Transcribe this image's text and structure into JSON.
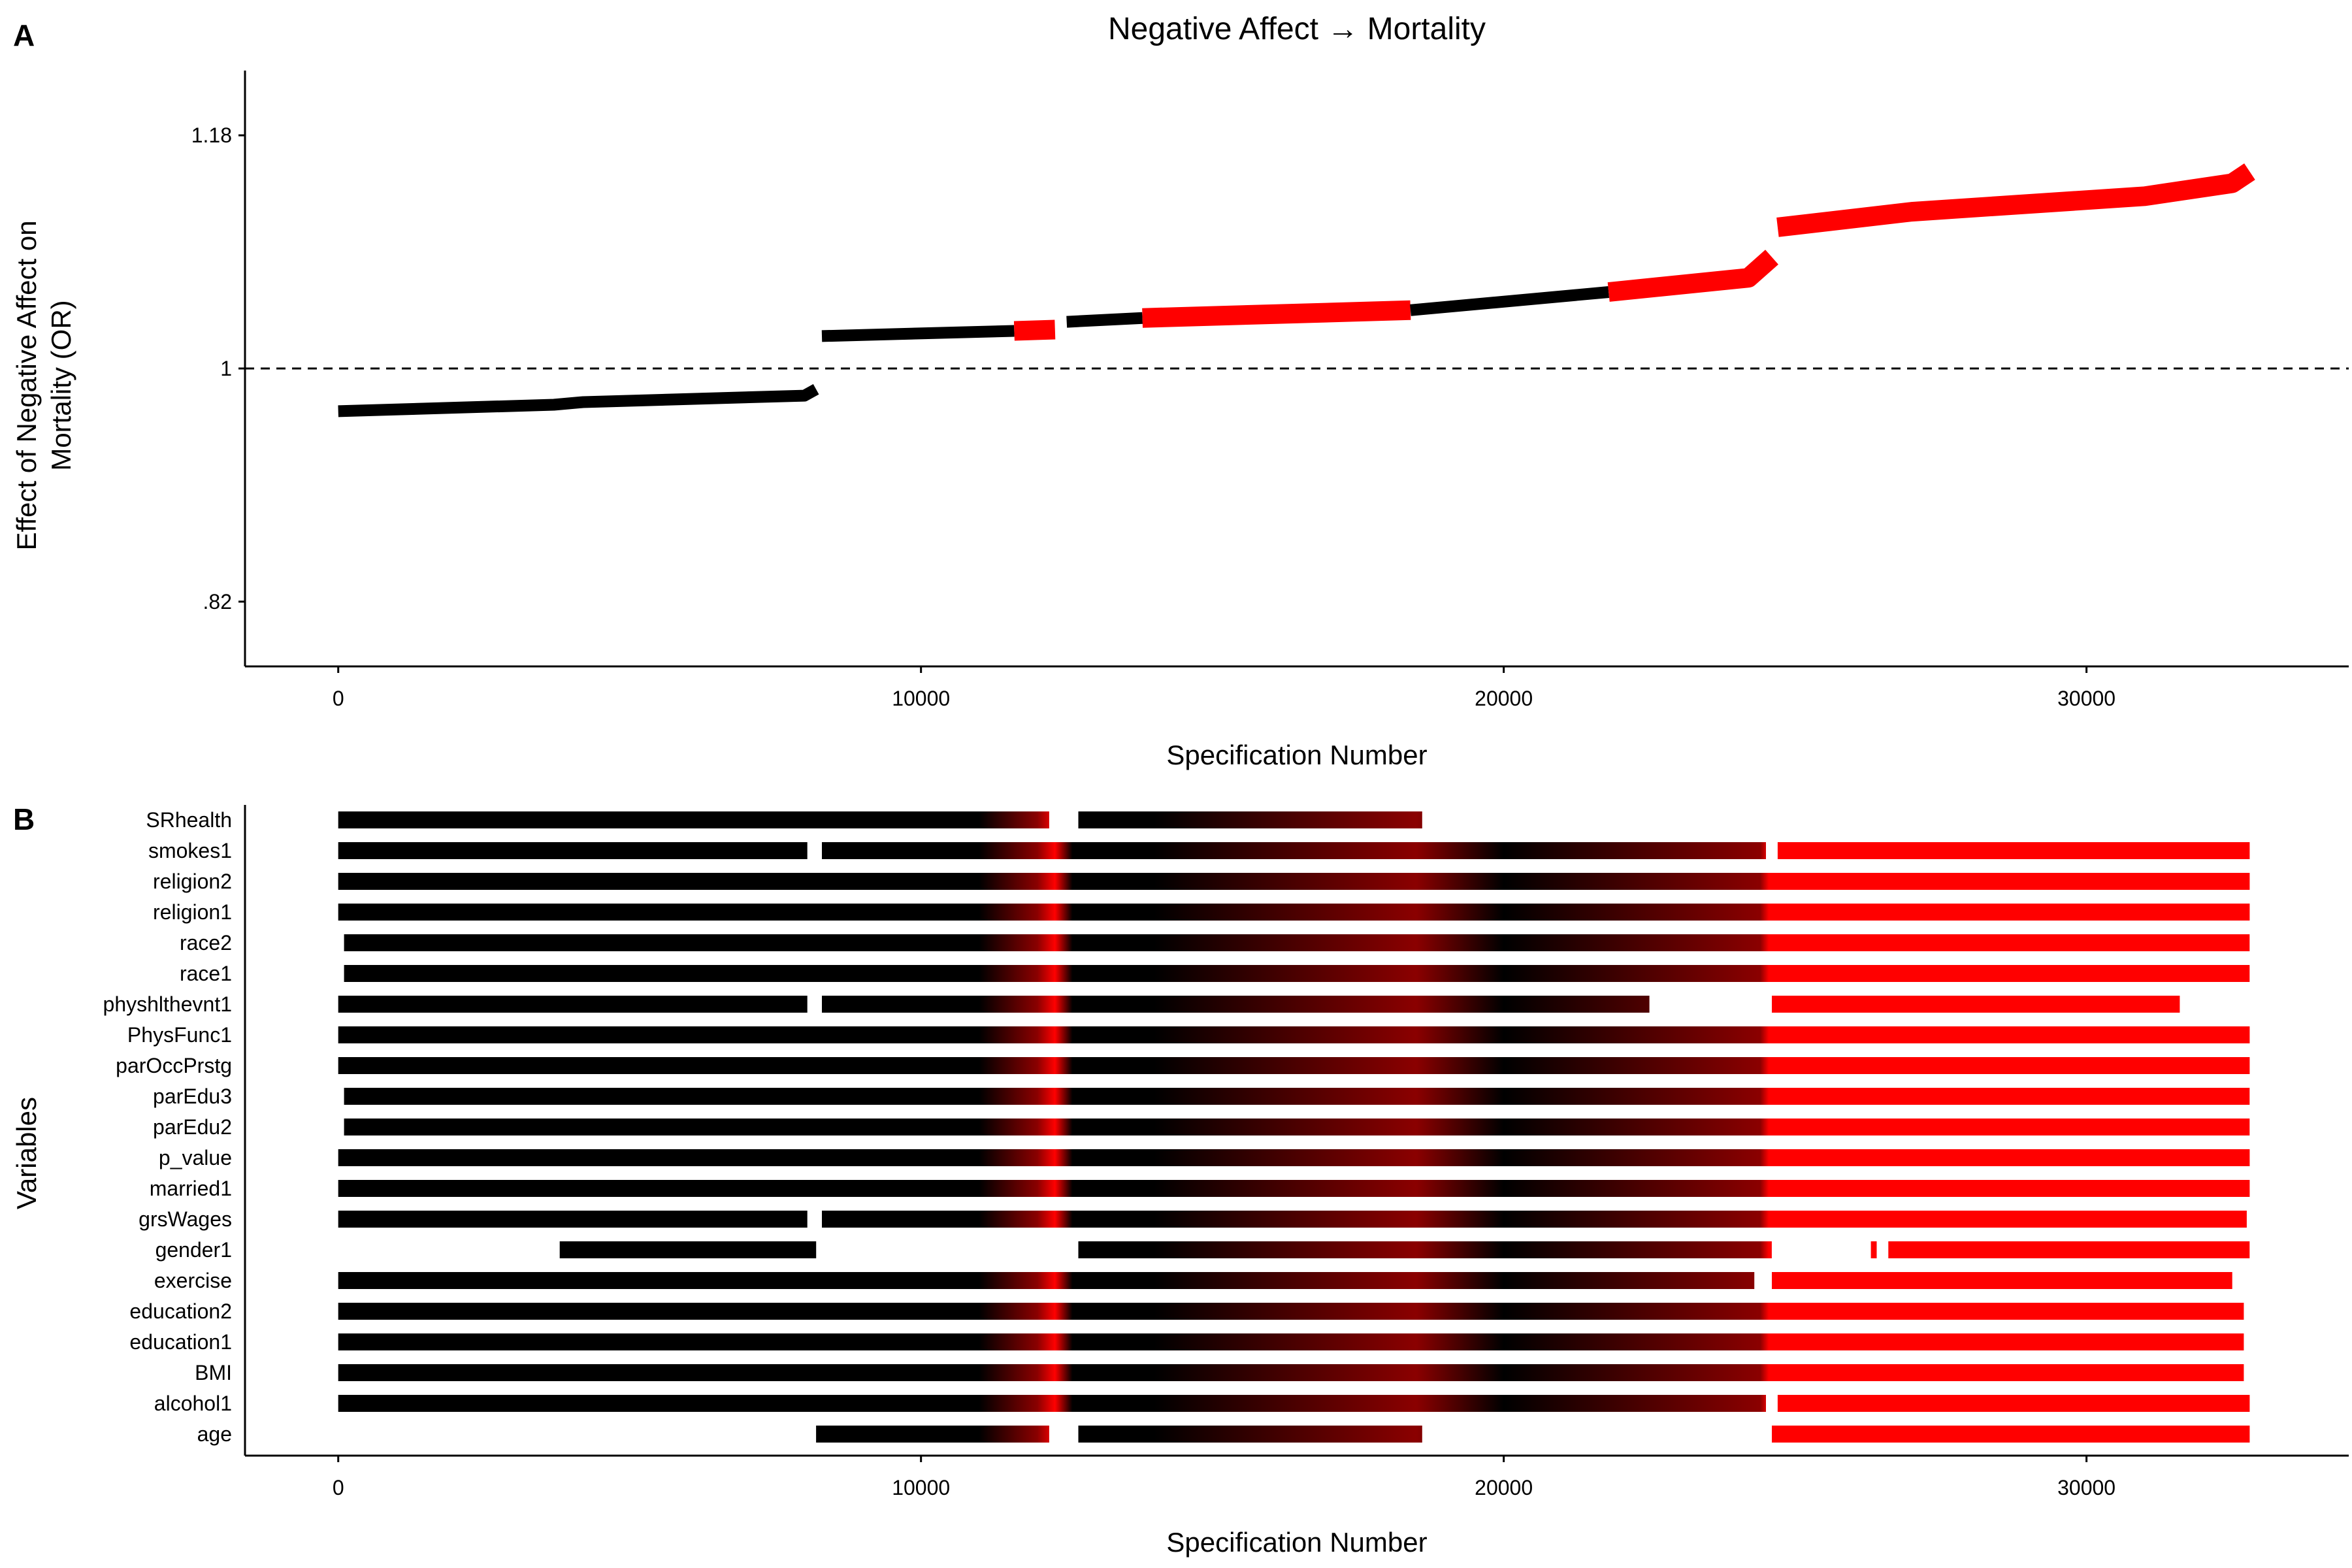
{
  "panel_a": {
    "label": "A",
    "title": "Negative Affect → Mortality",
    "ylabel_line1": "Effect of Negative Affect on",
    "ylabel_line2": "Mortality (OR)",
    "xlabel": "Specification Number"
  },
  "panel_b": {
    "label": "B",
    "ylabel": "Variables",
    "xlabel": "Specification Number"
  },
  "colors": {
    "black": "#000000",
    "red": "#ff0000",
    "dark_red": "#8b0000"
  },
  "chart_data": [
    {
      "type": "line",
      "title": "Negative Affect → Mortality",
      "xlabel": "Specification Number",
      "ylabel": "Effect of Negative Affect on Mortality (OR)",
      "xlim": [
        -1600,
        34500
      ],
      "ylim": [
        0.77,
        1.23
      ],
      "x_ticks": [
        0,
        10000,
        20000,
        30000
      ],
      "x_tick_labels": [
        "0",
        "10000",
        "20000",
        "30000"
      ],
      "y_ticks": [
        0.82,
        1,
        1.18
      ],
      "y_tick_labels": [
        ".82",
        "1",
        "1.18"
      ],
      "reference_line": 1,
      "grid": false,
      "series": [
        {
          "color": "black",
          "points": [
            [
              0,
              0.967
            ],
            [
              3700,
              0.972
            ],
            [
              4200,
              0.974
            ],
            [
              8000,
              0.979
            ],
            [
              8200,
              0.984
            ]
          ]
        },
        {
          "color": "black",
          "points": [
            [
              8300,
              1.025
            ],
            [
              11600,
              1.029
            ]
          ]
        },
        {
          "color": "red",
          "points": [
            [
              11600,
              1.029
            ],
            [
              12300,
              1.03
            ]
          ]
        },
        {
          "color": "black",
          "points": [
            [
              12500,
              1.036
            ],
            [
              13800,
              1.039
            ]
          ]
        },
        {
          "color": "red",
          "points": [
            [
              13800,
              1.039
            ],
            [
              18400,
              1.045
            ]
          ]
        },
        {
          "color": "black",
          "points": [
            [
              18400,
              1.045
            ],
            [
              21800,
              1.059
            ]
          ]
        },
        {
          "color": "red",
          "points": [
            [
              21800,
              1.059
            ],
            [
              24200,
              1.07
            ],
            [
              24600,
              1.086
            ]
          ]
        },
        {
          "color": "red",
          "points": [
            [
              24700,
              1.109
            ],
            [
              27000,
              1.121
            ],
            [
              31000,
              1.133
            ],
            [
              32500,
              1.143
            ],
            [
              32800,
              1.152
            ]
          ]
        }
      ]
    },
    {
      "type": "heatmap",
      "xlabel": "Specification Number",
      "ylabel": "Variables",
      "xlim": [
        -1600,
        34500
      ],
      "x_ticks": [
        0,
        10000,
        20000,
        30000
      ],
      "x_tick_labels": [
        "0",
        "10000",
        "20000",
        "30000"
      ],
      "variables": [
        {
          "name": "SRhealth",
          "segments": [
            [
              0,
              12200
            ],
            [
              12700,
              18600
            ]
          ]
        },
        {
          "name": "smokes1",
          "segments": [
            [
              0,
              8050
            ],
            [
              8300,
              24500
            ],
            [
              24700,
              32800
            ]
          ]
        },
        {
          "name": "religion2",
          "segments": [
            [
              0,
              32800
            ]
          ]
        },
        {
          "name": "religion1",
          "segments": [
            [
              0,
              32800
            ]
          ]
        },
        {
          "name": "race2",
          "segments": [
            [
              100,
              32800
            ]
          ]
        },
        {
          "name": "race1",
          "segments": [
            [
              100,
              32800
            ]
          ]
        },
        {
          "name": "physhlthevnt1",
          "segments": [
            [
              0,
              8050
            ],
            [
              8300,
              22500
            ],
            [
              24600,
              31600
            ]
          ]
        },
        {
          "name": "PhysFunc1",
          "segments": [
            [
              0,
              32800
            ]
          ]
        },
        {
          "name": "parOccPrstg",
          "segments": [
            [
              0,
              32800
            ]
          ]
        },
        {
          "name": "parEdu3",
          "segments": [
            [
              100,
              32800
            ]
          ]
        },
        {
          "name": "parEdu2",
          "segments": [
            [
              100,
              32800
            ]
          ]
        },
        {
          "name": "p_value",
          "segments": [
            [
              0,
              32800
            ]
          ]
        },
        {
          "name": "married1",
          "segments": [
            [
              0,
              32800
            ]
          ]
        },
        {
          "name": "grsWages",
          "segments": [
            [
              0,
              8050
            ],
            [
              8300,
              32750
            ]
          ]
        },
        {
          "name": "gender1",
          "segments": [
            [
              3800,
              8200
            ],
            [
              12700,
              24600
            ],
            [
              26300,
              26400
            ],
            [
              26600,
              32800
            ]
          ]
        },
        {
          "name": "exercise",
          "segments": [
            [
              0,
              24300
            ],
            [
              24600,
              32500
            ]
          ]
        },
        {
          "name": "education2",
          "segments": [
            [
              0,
              32700
            ]
          ]
        },
        {
          "name": "education1",
          "segments": [
            [
              0,
              32700
            ]
          ]
        },
        {
          "name": "BMI",
          "segments": [
            [
              0,
              32700
            ]
          ]
        },
        {
          "name": "alcohol1",
          "segments": [
            [
              0,
              24500
            ],
            [
              24700,
              32800
            ]
          ]
        },
        {
          "name": "age",
          "segments": [
            [
              8200,
              12200
            ],
            [
              12700,
              18600
            ],
            [
              24600,
              32800
            ]
          ]
        }
      ]
    }
  ]
}
